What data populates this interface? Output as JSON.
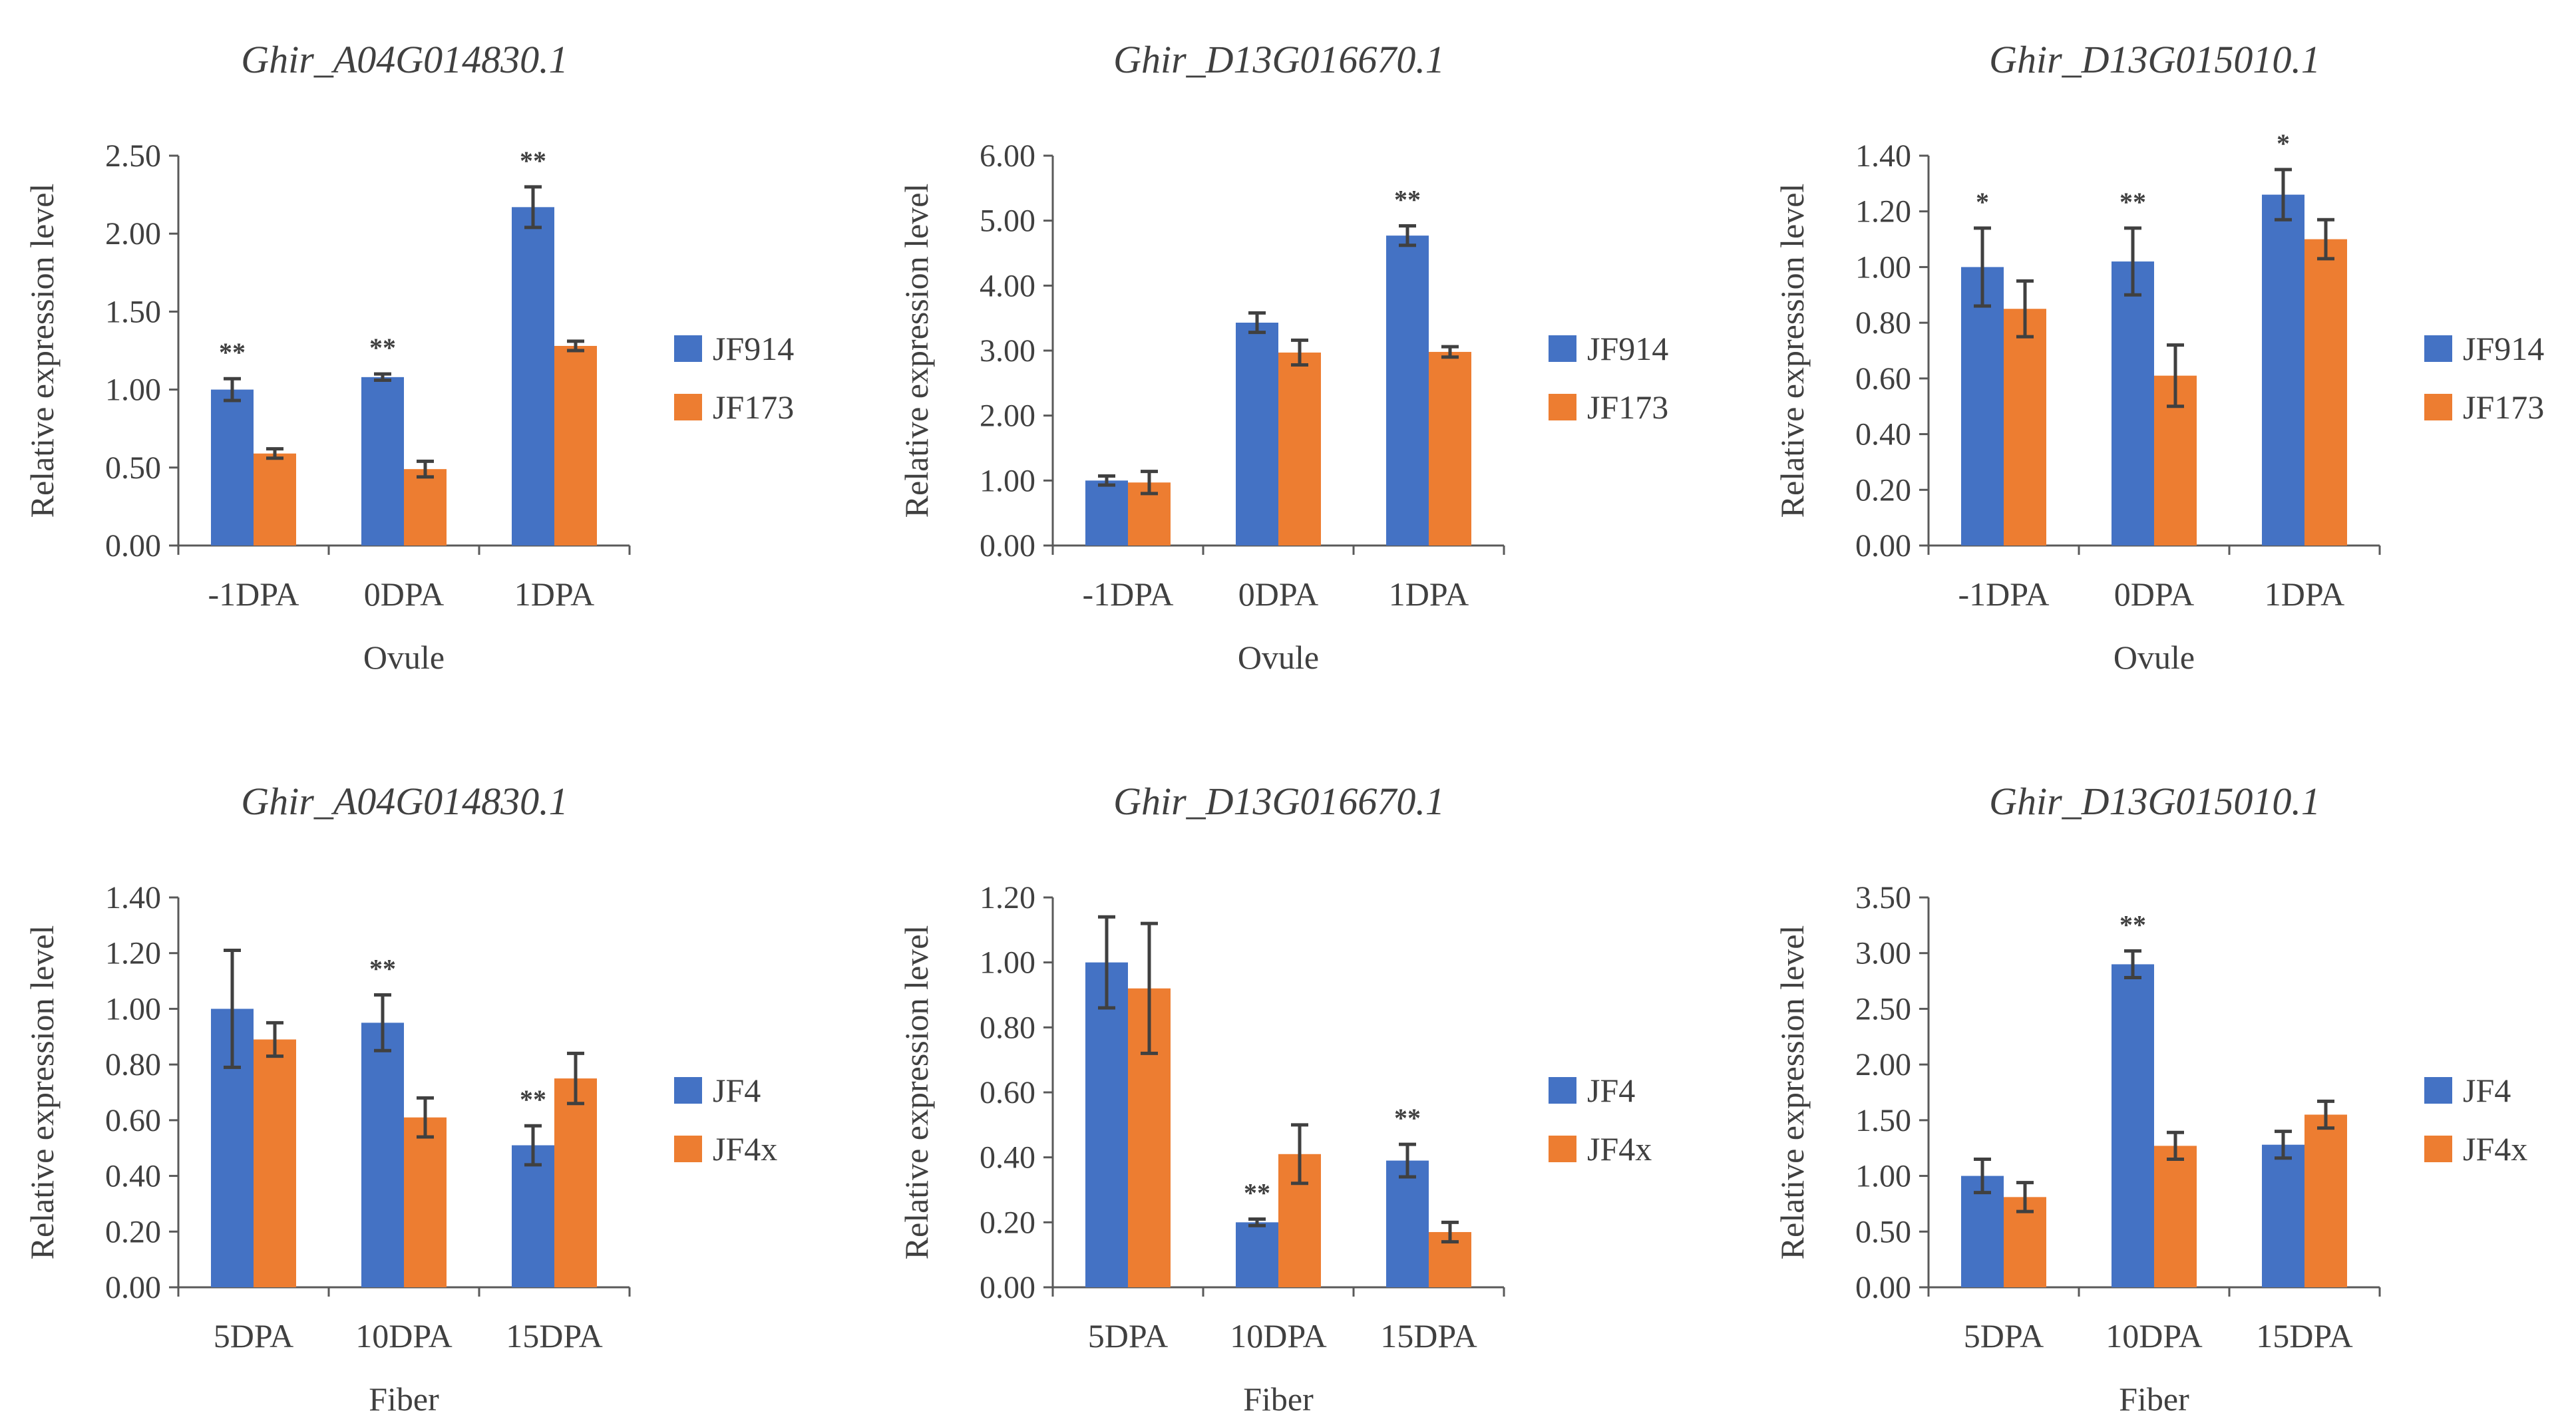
{
  "figure": {
    "series_colors": [
      "#4472C4",
      "#ED7D31"
    ],
    "axis_color": "#595959",
    "text_color": "#404040"
  },
  "chart_data": [
    {
      "type": "bar",
      "title": "Ghir_A04G014830.1",
      "xlabel": "Ovule",
      "ylabel": "Relative expression level",
      "ylim": [
        0,
        2.5
      ],
      "ytick_step": 0.5,
      "categories": [
        "-1DPA",
        "0DPA",
        "1DPA"
      ],
      "series": [
        {
          "name": "JF914",
          "values": [
            1.0,
            1.08,
            2.17
          ],
          "errors": [
            0.07,
            0.02,
            0.13
          ]
        },
        {
          "name": "JF173",
          "values": [
            0.59,
            0.49,
            1.28
          ],
          "errors": [
            0.03,
            0.05,
            0.03
          ]
        }
      ],
      "significance": [
        "**",
        "**",
        "**"
      ],
      "legend": "right",
      "grid": false
    },
    {
      "type": "bar",
      "title": "Ghir_D13G016670.1",
      "xlabel": "Ovule",
      "ylabel": "Relative expression level",
      "ylim": [
        0,
        6
      ],
      "ytick_step": 1,
      "categories": [
        "-1DPA",
        "0DPA",
        "1DPA"
      ],
      "series": [
        {
          "name": "JF914",
          "values": [
            1.0,
            3.43,
            4.77
          ],
          "errors": [
            0.07,
            0.15,
            0.15
          ]
        },
        {
          "name": "JF173",
          "values": [
            0.97,
            2.97,
            2.98
          ],
          "errors": [
            0.17,
            0.19,
            0.08
          ]
        }
      ],
      "significance": [
        "",
        "",
        "**"
      ],
      "legend": "right",
      "grid": false
    },
    {
      "type": "bar",
      "title": "Ghir_D13G015010.1",
      "xlabel": "Ovule",
      "ylabel": "Relative expression level",
      "ylim": [
        0,
        1.4
      ],
      "ytick_step": 0.2,
      "categories": [
        "-1DPA",
        "0DPA",
        "1DPA"
      ],
      "series": [
        {
          "name": "JF914",
          "values": [
            1.0,
            1.02,
            1.26
          ],
          "errors": [
            0.14,
            0.12,
            0.09
          ]
        },
        {
          "name": "JF173",
          "values": [
            0.85,
            0.61,
            1.1
          ],
          "errors": [
            0.1,
            0.11,
            0.07
          ]
        }
      ],
      "significance": [
        "*",
        "**",
        "*"
      ],
      "legend": "right",
      "grid": false
    },
    {
      "type": "bar",
      "title": "Ghir_A04G014830.1",
      "xlabel": "Fiber",
      "ylabel": "Relative expression level",
      "ylim": [
        0,
        1.4
      ],
      "ytick_step": 0.2,
      "categories": [
        "5DPA",
        "10DPA",
        "15DPA"
      ],
      "series": [
        {
          "name": "JF4",
          "values": [
            1.0,
            0.95,
            0.51
          ],
          "errors": [
            0.21,
            0.1,
            0.07
          ]
        },
        {
          "name": "JF4x",
          "values": [
            0.89,
            0.61,
            0.75
          ],
          "errors": [
            0.06,
            0.07,
            0.09
          ]
        }
      ],
      "significance": [
        "",
        "**",
        "**"
      ],
      "legend": "right",
      "grid": false
    },
    {
      "type": "bar",
      "title": "Ghir_D13G016670.1",
      "xlabel": "Fiber",
      "ylabel": "Relative expression level",
      "ylim": [
        0,
        1.2
      ],
      "ytick_step": 0.2,
      "categories": [
        "5DPA",
        "10DPA",
        "15DPA"
      ],
      "series": [
        {
          "name": "JF4",
          "values": [
            1.0,
            0.2,
            0.39
          ],
          "errors": [
            0.14,
            0.01,
            0.05
          ]
        },
        {
          "name": "JF4x",
          "values": [
            0.92,
            0.41,
            0.17
          ],
          "errors": [
            0.2,
            0.09,
            0.03
          ]
        }
      ],
      "significance": [
        "",
        "**",
        "**"
      ],
      "legend": "right",
      "grid": false
    },
    {
      "type": "bar",
      "title": "Ghir_D13G015010.1",
      "xlabel": "Fiber",
      "ylabel": "Relative expression level",
      "ylim": [
        0,
        3.5
      ],
      "ytick_step": 0.5,
      "categories": [
        "5DPA",
        "10DPA",
        "15DPA"
      ],
      "series": [
        {
          "name": "JF4",
          "values": [
            1.0,
            2.9,
            1.28
          ],
          "errors": [
            0.15,
            0.12,
            0.12
          ]
        },
        {
          "name": "JF4x",
          "values": [
            0.81,
            1.27,
            1.55
          ],
          "errors": [
            0.13,
            0.12,
            0.12
          ]
        }
      ],
      "significance": [
        "",
        "**",
        ""
      ],
      "legend": "right",
      "grid": false
    }
  ]
}
